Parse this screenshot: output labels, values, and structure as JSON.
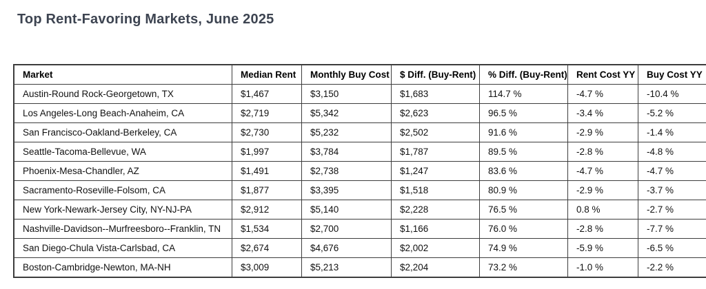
{
  "title": "Top Rent-Favoring Markets, June 2025",
  "colors": {
    "title_text": "#3d4451",
    "table_text": "#111111",
    "table_border": "#3c3c3c",
    "background": "#ffffff"
  },
  "chart_data": {
    "type": "table",
    "title": "Top Rent-Favoring Markets, June 2025",
    "columns": [
      "Market",
      "Median Rent",
      "Monthly Buy Cost",
      "$ Diff. (Buy-Rent)",
      "% Diff. (Buy-Rent)",
      "Rent Cost YY",
      "Buy Cost YY"
    ],
    "rows": [
      [
        "Austin-Round Rock-Georgetown, TX",
        "$1,467",
        "$3,150",
        "$1,683",
        "114.7 %",
        "-4.7 %",
        "-10.4 %"
      ],
      [
        "Los Angeles-Long Beach-Anaheim, CA",
        "$2,719",
        "$5,342",
        "$2,623",
        "96.5 %",
        "-3.4 %",
        "-5.2 %"
      ],
      [
        "San Francisco-Oakland-Berkeley, CA",
        "$2,730",
        "$5,232",
        "$2,502",
        "91.6 %",
        "-2.9 %",
        "-1.4 %"
      ],
      [
        "Seattle-Tacoma-Bellevue, WA",
        "$1,997",
        "$3,784",
        "$1,787",
        "89.5 %",
        "-2.8 %",
        "-4.8 %"
      ],
      [
        "Phoenix-Mesa-Chandler, AZ",
        "$1,491",
        "$2,738",
        "$1,247",
        "83.6 %",
        "-4.7 %",
        "-4.7 %"
      ],
      [
        "Sacramento-Roseville-Folsom, CA",
        "$1,877",
        "$3,395",
        "$1,518",
        "80.9 %",
        "-2.9 %",
        "-3.7 %"
      ],
      [
        "New York-Newark-Jersey City, NY-NJ-PA",
        "$2,912",
        "$5,140",
        "$2,228",
        "76.5 %",
        "0.8 %",
        "-2.7 %"
      ],
      [
        "Nashville-Davidson--Murfreesboro--Franklin, TN",
        "$1,534",
        "$2,700",
        "$1,166",
        "76.0 %",
        "-2.8 %",
        "-7.7 %"
      ],
      [
        "San Diego-Chula Vista-Carlsbad, CA",
        "$2,674",
        "$4,676",
        "$2,002",
        "74.9 %",
        "-5.9 %",
        "-6.5 %"
      ],
      [
        "Boston-Cambridge-Newton, MA-NH",
        "$3,009",
        "$5,213",
        "$2,204",
        "73.2 %",
        "-1.0 %",
        "-2.2 %"
      ]
    ]
  }
}
